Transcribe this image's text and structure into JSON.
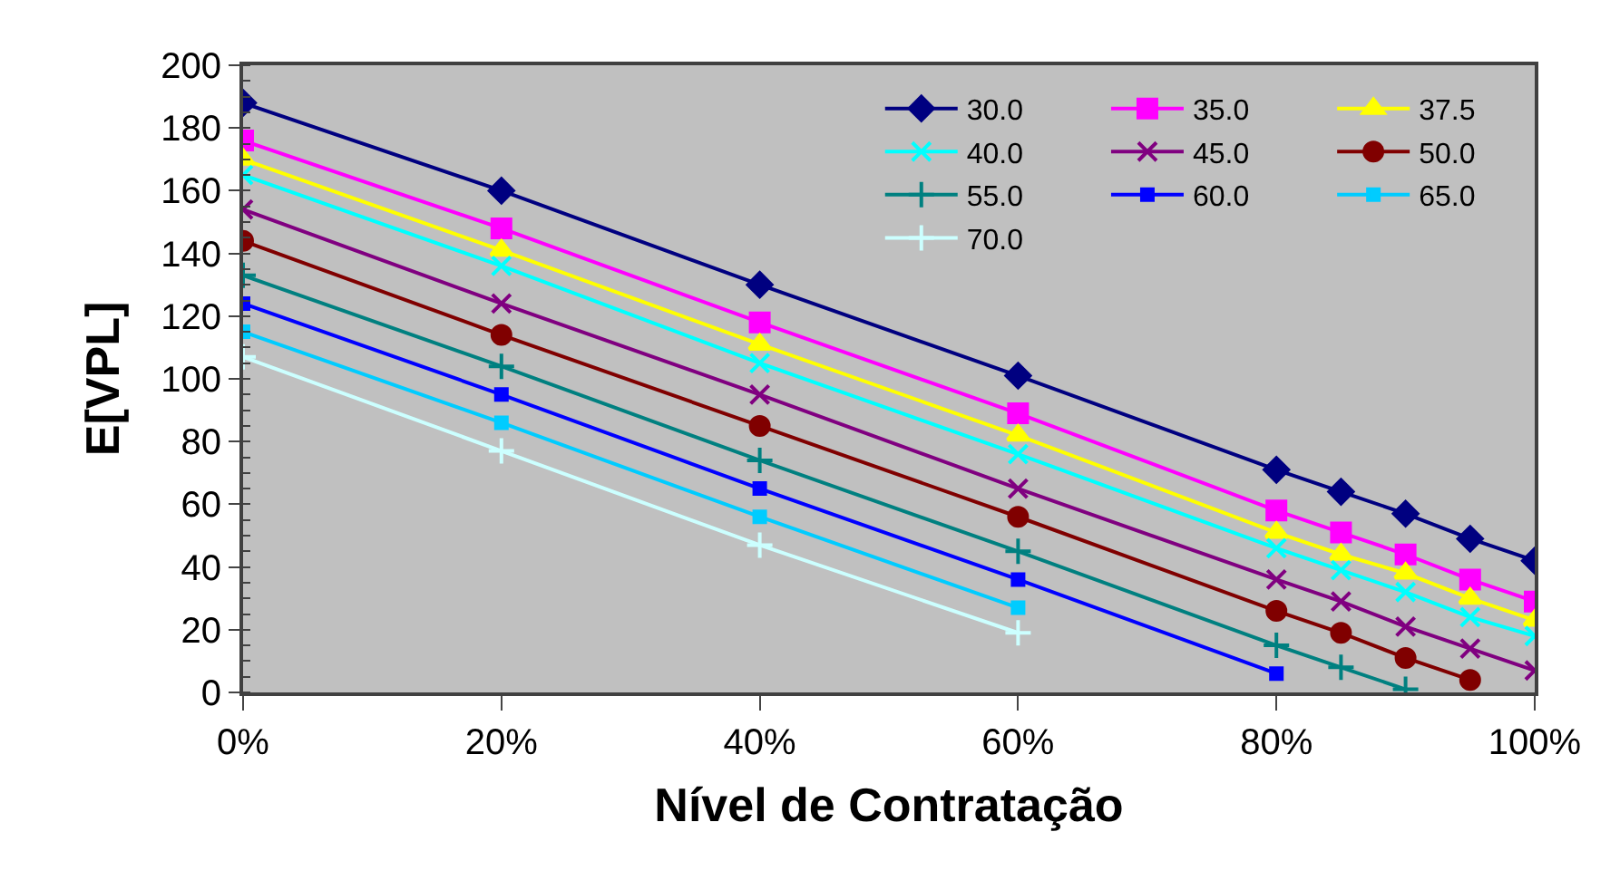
{
  "chart_data": {
    "type": "line",
    "xlabel": "Nível de Contratação",
    "ylabel": "E[VPL]",
    "x": [
      0,
      0.2,
      0.4,
      0.6,
      0.8,
      0.85,
      0.9,
      0.95,
      1.0
    ],
    "xlim": [
      0,
      1
    ],
    "xticks": [
      {
        "value": 0,
        "label": "0%"
      },
      {
        "value": 0.2,
        "label": "20%"
      },
      {
        "value": 0.4,
        "label": "40%"
      },
      {
        "value": 0.6,
        "label": "60%"
      },
      {
        "value": 0.8,
        "label": "80%"
      },
      {
        "value": 1.0,
        "label": "100%"
      }
    ],
    "ylim": [
      0,
      200
    ],
    "yticks": [
      0,
      20,
      40,
      60,
      80,
      100,
      120,
      140,
      160,
      180,
      200
    ],
    "grid": false,
    "legend": "top right",
    "series": [
      {
        "name": "30.0",
        "color": "#000080",
        "marker": "diamond",
        "values": [
          188,
          160,
          130,
          101,
          71,
          64,
          57,
          49,
          42
        ]
      },
      {
        "name": "35.0",
        "color": "#ff00ff",
        "marker": "square",
        "values": [
          176,
          148,
          118,
          89,
          58,
          51,
          44,
          36,
          29
        ]
      },
      {
        "name": "37.5",
        "color": "#ffff00",
        "marker": "triangle",
        "values": [
          170,
          141,
          111,
          82,
          51,
          44,
          38,
          30,
          23
        ]
      },
      {
        "name": "40.0",
        "color": "#00ffff",
        "marker": "cross",
        "values": [
          165,
          136,
          105,
          76,
          46,
          39,
          32,
          24,
          18
        ]
      },
      {
        "name": "45.0",
        "color": "#800080",
        "marker": "cross",
        "values": [
          154,
          124,
          95,
          65,
          36,
          29,
          21,
          14,
          7
        ]
      },
      {
        "name": "50.0",
        "color": "#800000",
        "marker": "circle",
        "values": [
          144,
          114,
          85,
          56,
          26,
          19,
          11,
          4,
          null
        ]
      },
      {
        "name": "55.0",
        "color": "#008080",
        "marker": "plus",
        "values": [
          133,
          104,
          74,
          45,
          15,
          8,
          1,
          null,
          null
        ]
      },
      {
        "name": "60.0",
        "color": "#0000ff",
        "marker": "square",
        "values": [
          124,
          95,
          65,
          36,
          6,
          null,
          null,
          null,
          null
        ]
      },
      {
        "name": "65.0",
        "color": "#00ccff",
        "marker": "square",
        "values": [
          115,
          86,
          56,
          27,
          null,
          null,
          null,
          null,
          null
        ]
      },
      {
        "name": "70.0",
        "color": "#ccffff",
        "marker": "plus",
        "values": [
          107,
          77,
          47,
          19,
          null,
          null,
          null,
          null,
          null
        ]
      }
    ]
  }
}
